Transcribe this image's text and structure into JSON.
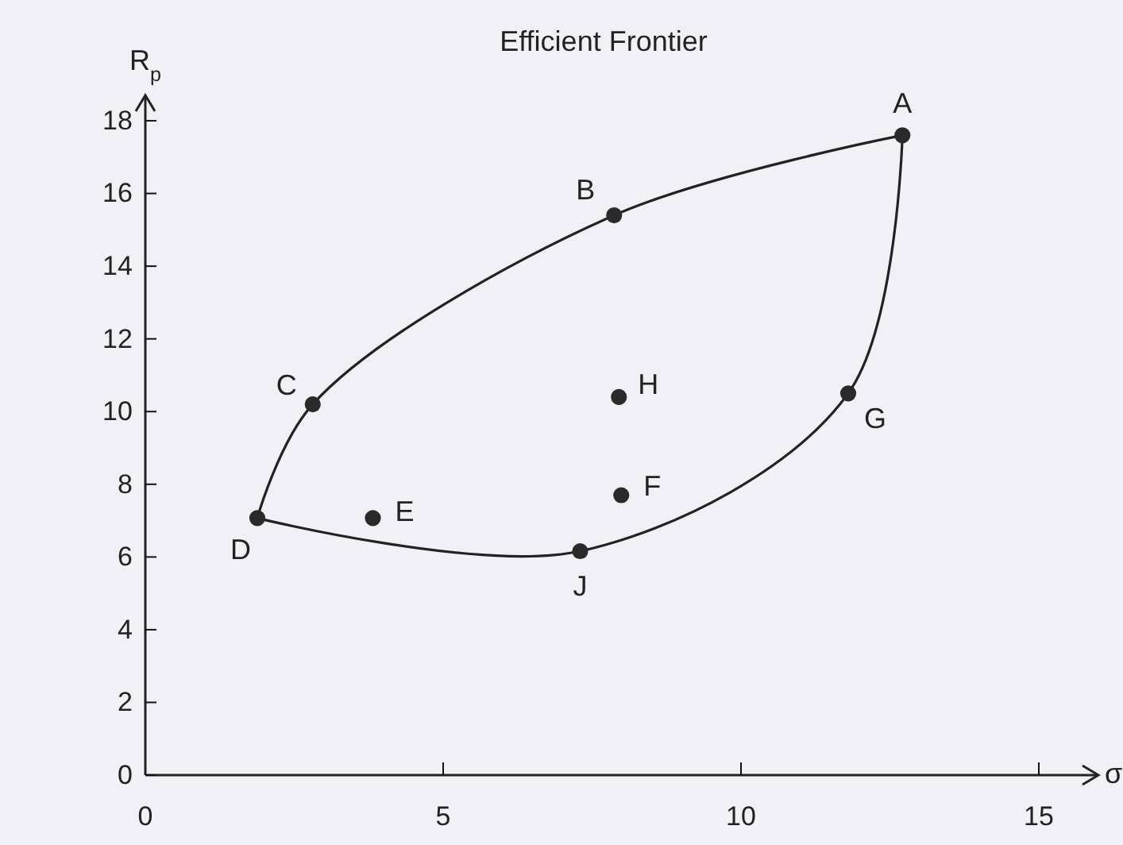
{
  "chart_data": {
    "type": "scatter",
    "title": "Efficient Frontier",
    "xlabel": "σ$_{p}$",
    "ylabel": "R$_{p}$",
    "xlim": [
      0,
      16
    ],
    "ylim": [
      0,
      18.7
    ],
    "xticks": [
      0,
      5,
      10,
      15
    ],
    "yticks": [
      0,
      2,
      4,
      6,
      8,
      10,
      12,
      14,
      16,
      18
    ],
    "grid": false,
    "series": [
      {
        "color": "#2a2a2a",
        "marker": "circle",
        "x": [
          12.71,
          7.87,
          2.81,
          1.88,
          3.82,
          7.99,
          11.8,
          7.95,
          7.3
        ],
        "values": [
          17.6,
          15.4,
          10.2,
          7.07,
          7.07,
          7.7,
          10.5,
          10.4,
          6.16
        ]
      }
    ],
    "annotations": [
      {
        "text": "A",
        "x": 12.71,
        "y": 17.6
      },
      {
        "text": "B",
        "x": 7.87,
        "y": 15.4
      },
      {
        "text": "C",
        "x": 2.81,
        "y": 10.2
      },
      {
        "text": "D",
        "x": 1.88,
        "y": 7.07
      },
      {
        "text": "E",
        "x": 3.82,
        "y": 7.07
      },
      {
        "text": "F",
        "x": 7.99,
        "y": 7.7
      },
      {
        "text": "G",
        "x": 11.8,
        "y": 10.5
      },
      {
        "text": "H",
        "x": 7.95,
        "y": 10.4
      },
      {
        "text": "J",
        "x": 7.3,
        "y": 6.16
      }
    ]
  }
}
